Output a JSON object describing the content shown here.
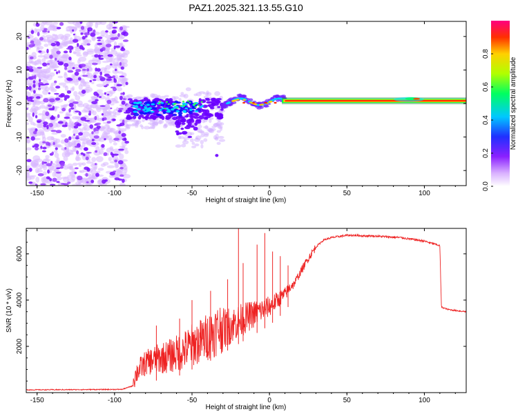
{
  "chart_data": [
    {
      "type": "heatmap",
      "title": "PAZ1.2025.321.13.55.G10",
      "xlabel": "Height of straight line (km)",
      "ylabel": "Frequency (Hz)",
      "xlim": [
        -157,
        127
      ],
      "ylim": [
        -24.5,
        24.5
      ],
      "xticks": [
        -150,
        -100,
        -50,
        0,
        50,
        100
      ],
      "yticks": [
        -20,
        -10,
        0,
        10,
        20
      ],
      "colorbar": {
        "label": "Normalized spectral amplitude",
        "range": [
          0,
          1
        ],
        "ticks": [
          "0.0",
          "0.2",
          "0.4",
          "0.6",
          "0.8"
        ],
        "colors": [
          "#ffffff",
          "#b070ff",
          "#6a00ff",
          "#0040ff",
          "#00d0ff",
          "#00ff40",
          "#c0ff00",
          "#ffd000",
          "#ff3000",
          "#ff0080"
        ]
      },
      "regions": [
        {
          "name": "noise",
          "x": [
            -157,
            -92
          ],
          "freq_range": [
            -24.5,
            24.5
          ],
          "amplitude": "low"
        },
        {
          "name": "scattered signal",
          "x": [
            -92,
            -30
          ],
          "freq_center": -3,
          "amplitude": "medium"
        },
        {
          "name": "converging signal",
          "x": [
            -30,
            10
          ],
          "freq_center": 0.5,
          "amplitude": "high"
        },
        {
          "name": "stable carrier",
          "x": [
            10,
            127
          ],
          "freq_center": 0.8,
          "amplitude": "max"
        }
      ]
    },
    {
      "type": "line",
      "xlabel": "Height of straight line (km)",
      "ylabel": "SNR (10 * v/v)",
      "xlim": [
        -157,
        127
      ],
      "ylim": [
        0,
        7100
      ],
      "xticks": [
        -150,
        -100,
        -50,
        0,
        50,
        100
      ],
      "yticks": [
        2000,
        4000,
        6000
      ],
      "color": "#ee2222",
      "series": [
        {
          "name": "SNR",
          "x": [
            -157,
            -120,
            -95,
            -88,
            -85,
            -80,
            -75,
            -70,
            -65,
            -60,
            -55,
            -50,
            -45,
            -40,
            -35,
            -30,
            -25,
            -20,
            -15,
            -10,
            -5,
            0,
            5,
            10,
            15,
            20,
            25,
            30,
            35,
            40,
            45,
            50,
            55,
            60,
            65,
            70,
            75,
            80,
            85,
            90,
            95,
            100,
            105,
            108,
            110,
            111,
            115,
            120,
            127
          ],
          "y": [
            120,
            130,
            140,
            300,
            700,
            1000,
            1100,
            1150,
            1200,
            1300,
            1400,
            1600,
            1700,
            1900,
            2100,
            2300,
            2500,
            2700,
            2900,
            3100,
            3300,
            3500,
            3800,
            4100,
            4600,
            5200,
            5800,
            6300,
            6600,
            6700,
            6750,
            6800,
            6800,
            6780,
            6780,
            6760,
            6740,
            6720,
            6700,
            6650,
            6600,
            6550,
            6450,
            6400,
            6350,
            3700,
            3600,
            3550,
            3500
          ]
        }
      ],
      "bursts": [
        {
          "x": -73,
          "y": 2900
        },
        {
          "x": -58,
          "y": 3200
        },
        {
          "x": -50,
          "y": 4000
        },
        {
          "x": -38,
          "y": 4400
        },
        {
          "x": -27,
          "y": 4900
        },
        {
          "x": -20,
          "y": 7100
        },
        {
          "x": -17,
          "y": 5600
        },
        {
          "x": -8,
          "y": 6400
        },
        {
          "x": -3,
          "y": 6900
        },
        {
          "x": 2,
          "y": 6100
        },
        {
          "x": 7,
          "y": 5900
        },
        {
          "x": 12,
          "y": 5500
        }
      ]
    }
  ]
}
